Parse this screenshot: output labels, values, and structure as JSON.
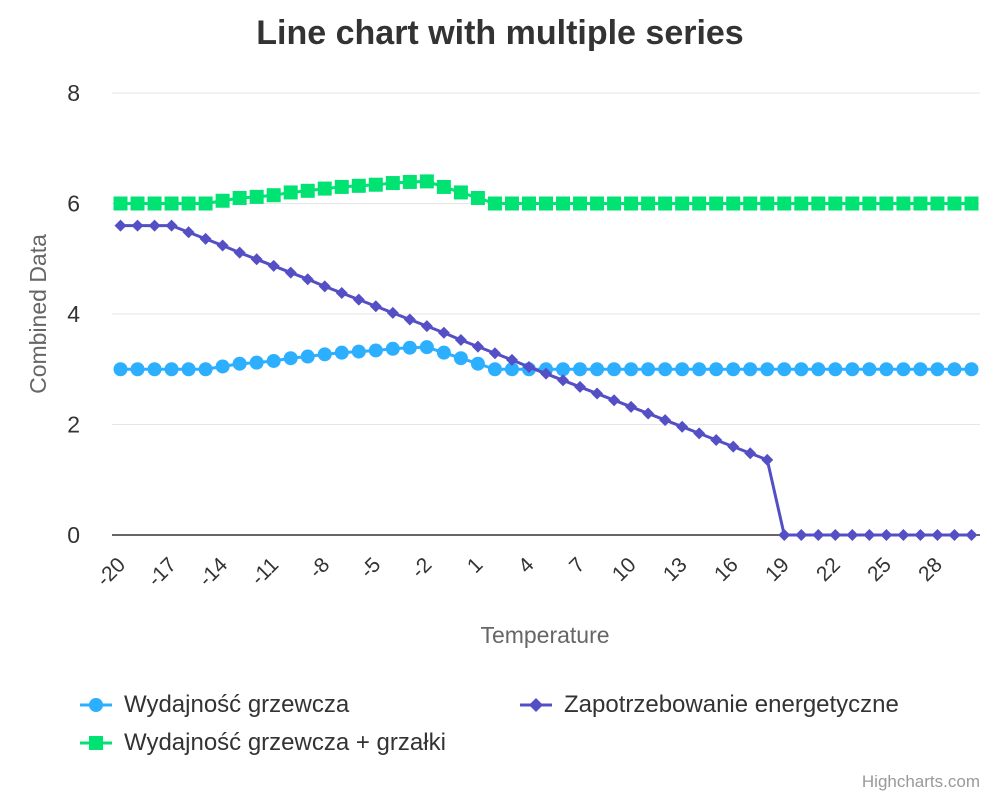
{
  "chart_data": {
    "type": "line",
    "title": "Line chart with multiple series",
    "xlabel": "Temperature",
    "ylabel": "Combined Data",
    "ylim": [
      0,
      8
    ],
    "yticks": [
      "0",
      "2",
      "4",
      "6",
      "8"
    ],
    "xticks": [
      "-20",
      "-17",
      "-14",
      "-11",
      "-8",
      "-5",
      "-2",
      "1",
      "4",
      "7",
      "10",
      "13",
      "16",
      "19",
      "22",
      "25",
      "28"
    ],
    "x": [
      -20,
      -19,
      -18,
      -17,
      -16,
      -15,
      -14,
      -13,
      -12,
      -11,
      -10,
      -9,
      -8,
      -7,
      -6,
      -5,
      -4,
      -3,
      -2,
      -1,
      0,
      1,
      2,
      3,
      4,
      5,
      6,
      7,
      8,
      9,
      10,
      11,
      12,
      13,
      14,
      15,
      16,
      17,
      18,
      19,
      20,
      21,
      22,
      23,
      24,
      25,
      26,
      27,
      28,
      29,
      30
    ],
    "series": [
      {
        "name": "Wydajność grzewcza",
        "color": "#2caffe",
        "marker": "circle",
        "values": [
          3.0,
          3.0,
          3.0,
          3.0,
          3.0,
          3.0,
          3.05,
          3.1,
          3.12,
          3.15,
          3.2,
          3.23,
          3.27,
          3.3,
          3.32,
          3.34,
          3.37,
          3.39,
          3.4,
          3.3,
          3.2,
          3.1,
          3.0,
          3.0,
          3.0,
          3.0,
          3.0,
          3.0,
          3.0,
          3.0,
          3.0,
          3.0,
          3.0,
          3.0,
          3.0,
          3.0,
          3.0,
          3.0,
          3.0,
          3.0,
          3.0,
          3.0,
          3.0,
          3.0,
          3.0,
          3.0,
          3.0,
          3.0,
          3.0,
          3.0,
          3.0
        ]
      },
      {
        "name": "Wydajność grzewcza + grzałki",
        "color": "#00e272",
        "marker": "square",
        "values": [
          6.0,
          6.0,
          6.0,
          6.0,
          6.0,
          6.0,
          6.05,
          6.1,
          6.12,
          6.15,
          6.2,
          6.23,
          6.27,
          6.3,
          6.32,
          6.34,
          6.37,
          6.39,
          6.4,
          6.3,
          6.2,
          6.1,
          6.0,
          6.0,
          6.0,
          6.0,
          6.0,
          6.0,
          6.0,
          6.0,
          6.0,
          6.0,
          6.0,
          6.0,
          6.0,
          6.0,
          6.0,
          6.0,
          6.0,
          6.0,
          6.0,
          6.0,
          6.0,
          6.0,
          6.0,
          6.0,
          6.0,
          6.0,
          6.0,
          6.0,
          6.0
        ]
      },
      {
        "name": "Zapotrzebowanie energetyczne",
        "color": "#544fc5",
        "marker": "diamond",
        "values": [
          5.6,
          5.6,
          5.6,
          5.6,
          5.48,
          5.36,
          5.24,
          5.11,
          4.99,
          4.87,
          4.75,
          4.63,
          4.5,
          4.38,
          4.26,
          4.14,
          4.02,
          3.9,
          3.78,
          3.66,
          3.53,
          3.41,
          3.29,
          3.17,
          3.04,
          2.92,
          2.8,
          2.68,
          2.56,
          2.44,
          2.32,
          2.2,
          2.08,
          1.96,
          1.84,
          1.72,
          1.6,
          1.48,
          1.36,
          0.0,
          0.0,
          0.0,
          0.0,
          0.0,
          0.0,
          0.0,
          0.0,
          0.0,
          0.0,
          0.0,
          0.0
        ]
      }
    ],
    "legend": "bottom",
    "grid": true
  },
  "credits": "Highcharts.com"
}
